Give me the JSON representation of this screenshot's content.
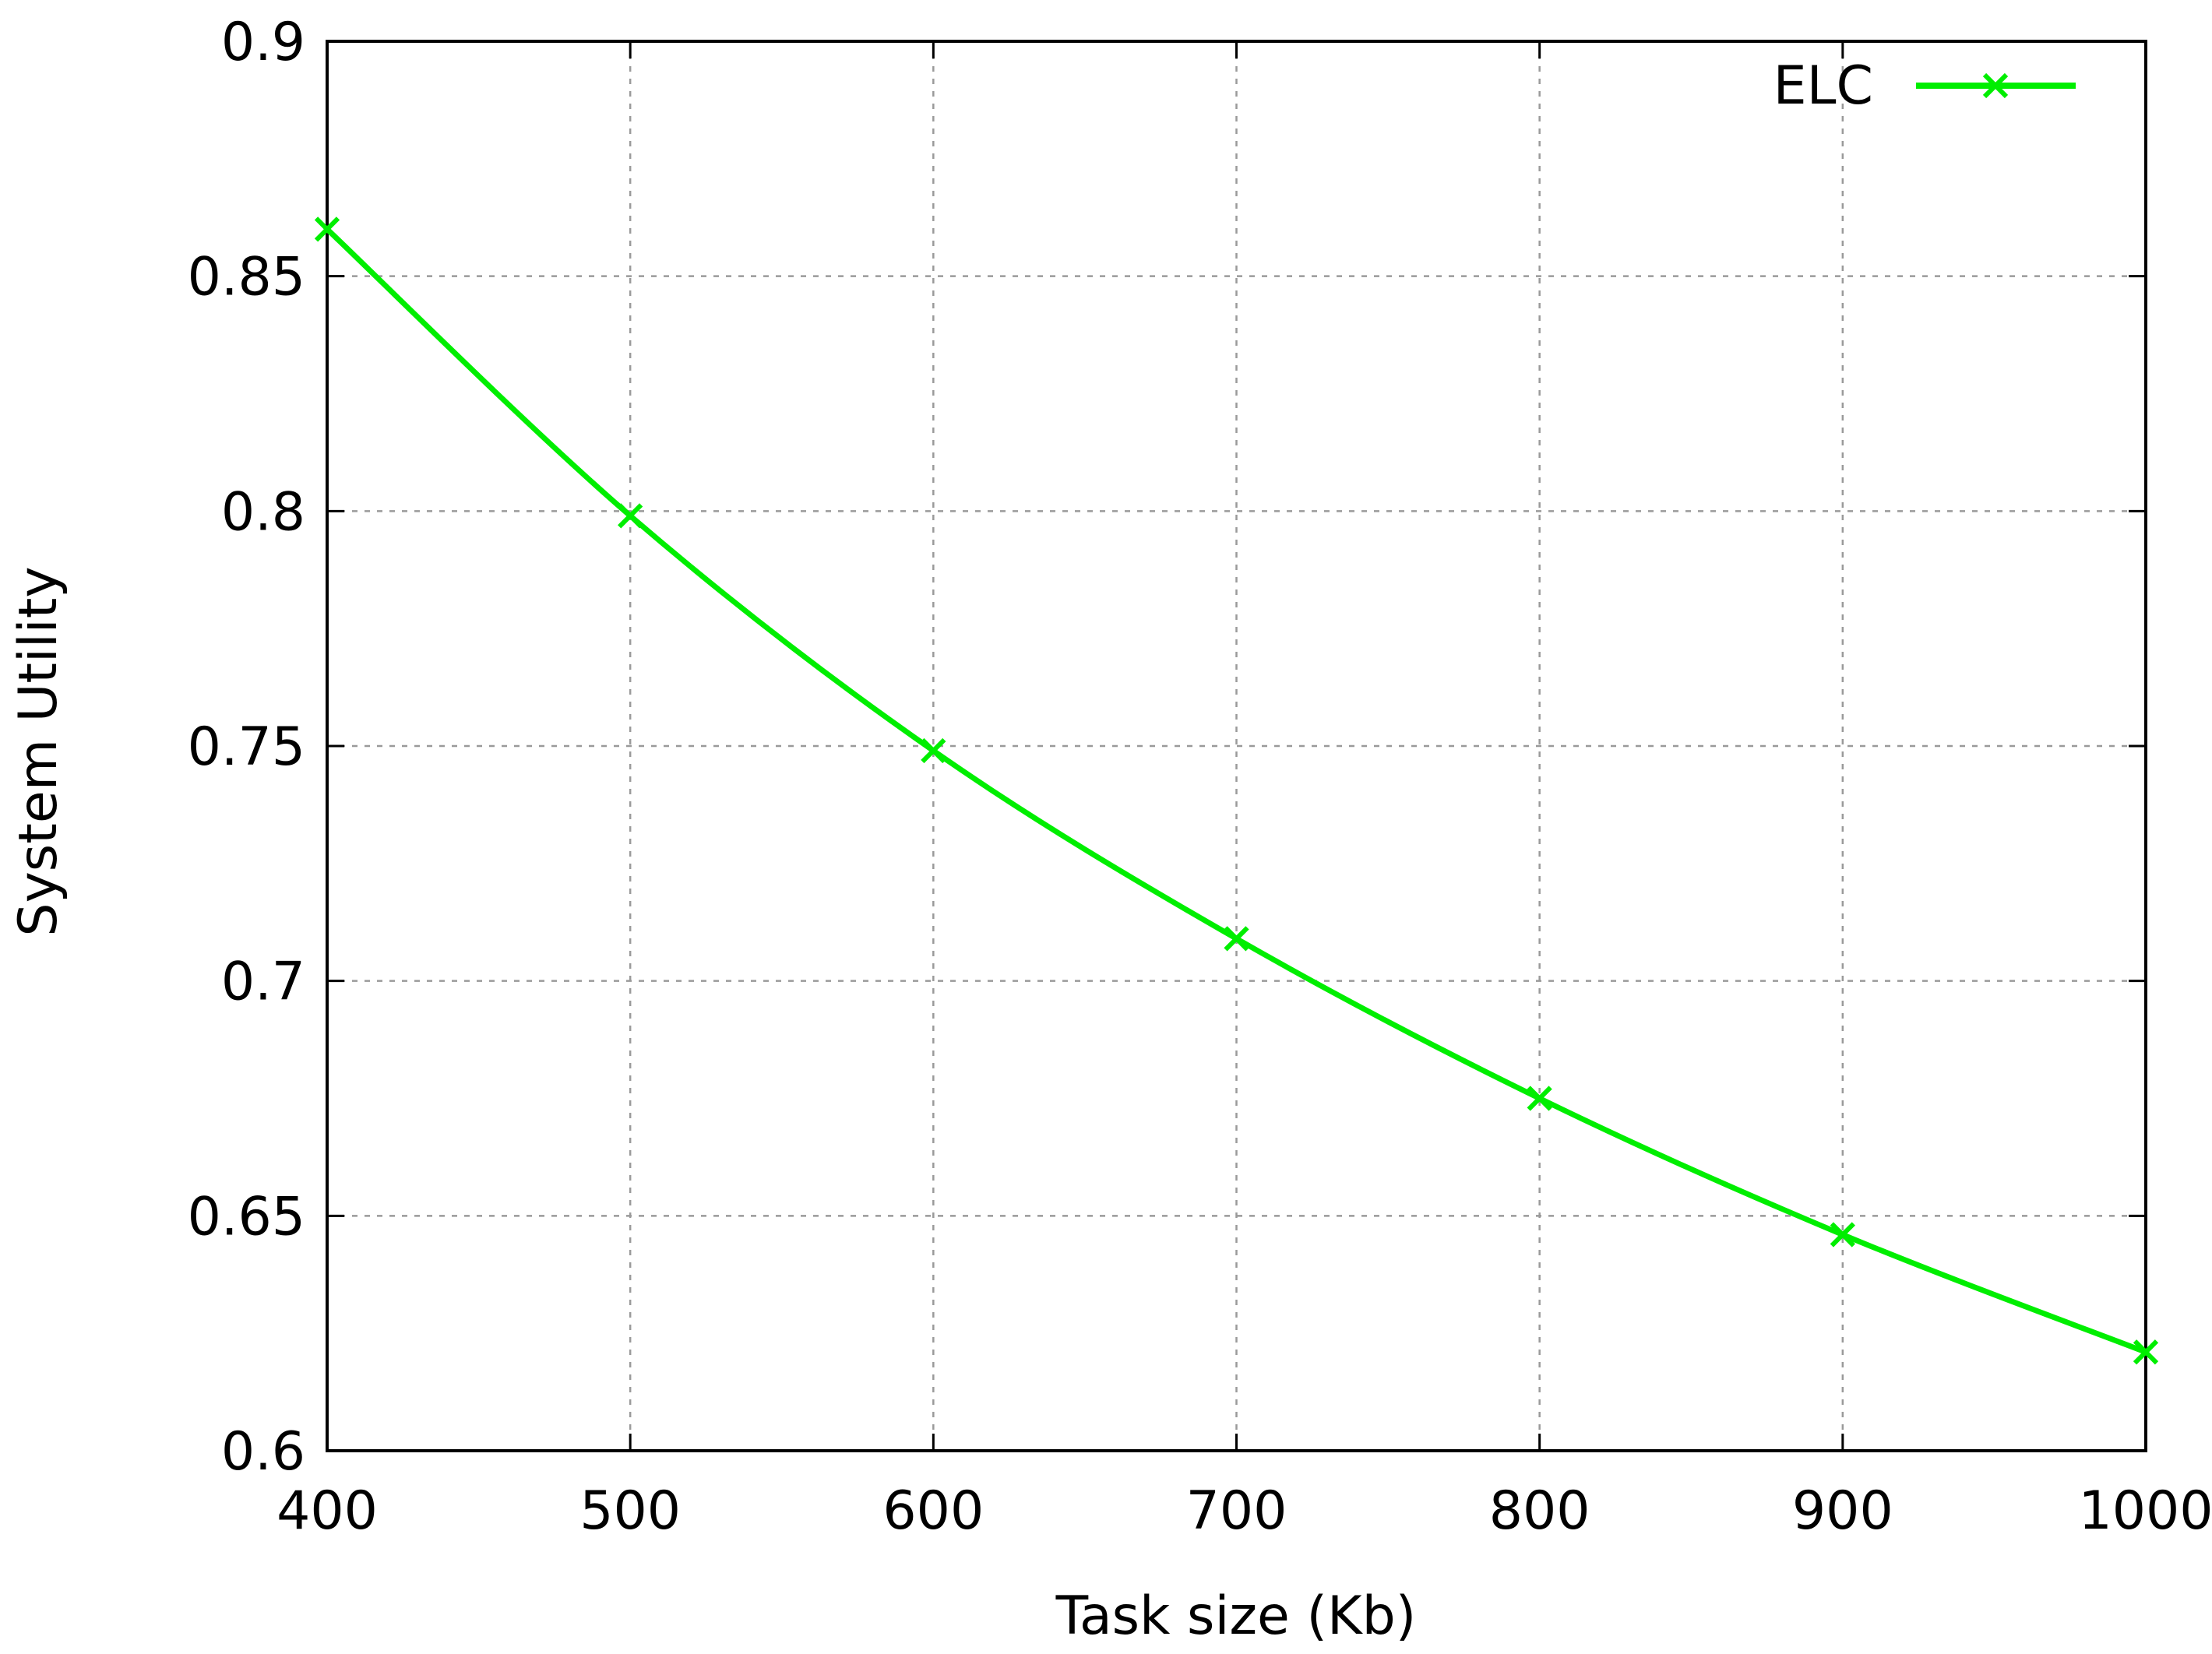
{
  "chart_data": {
    "type": "line",
    "title": "",
    "xlabel": "Task size (Kb)",
    "ylabel": "System Utility",
    "xlim": [
      400,
      1000
    ],
    "ylim": [
      0.6,
      0.9
    ],
    "x_ticks": [
      400,
      500,
      600,
      700,
      800,
      900,
      1000
    ],
    "x_tick_labels": [
      "400",
      "500",
      "600",
      "700",
      "800",
      "900",
      "1000"
    ],
    "y_ticks": [
      0.6,
      0.65,
      0.7,
      0.75,
      0.8,
      0.85,
      0.9
    ],
    "y_tick_labels": [
      "0.6",
      "0.65",
      "0.7",
      "0.75",
      "0.8",
      "0.85",
      "0.9"
    ],
    "grid": true,
    "legend_position": "top-right",
    "x": [
      400,
      500,
      600,
      700,
      800,
      900,
      1000
    ],
    "series": [
      {
        "name": "ELC",
        "values": [
          0.86,
          0.799,
          0.749,
          0.709,
          0.675,
          0.646,
          0.621
        ],
        "color": "#00ee00",
        "marker": "x"
      }
    ]
  }
}
